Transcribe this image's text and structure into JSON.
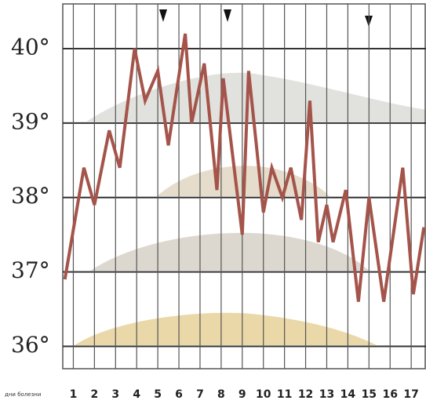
{
  "chart_data": {
    "type": "line",
    "x_label": "дни болезни",
    "x": [
      0.6,
      1.5,
      2.0,
      2.7,
      3.2,
      3.9,
      4.4,
      5.0,
      5.5,
      6.3,
      6.6,
      7.2,
      7.8,
      8.1,
      9.0,
      9.3,
      10.0,
      10.4,
      10.9,
      11.3,
      11.8,
      12.2,
      12.6,
      13.0,
      13.3,
      13.9,
      14.5,
      15.0,
      15.7,
      16.6,
      17.1,
      17.6
    ],
    "values": [
      36.9,
      38.4,
      37.9,
      38.9,
      38.4,
      40.0,
      39.3,
      39.7,
      38.7,
      40.2,
      39.0,
      39.8,
      38.1,
      39.6,
      37.5,
      39.7,
      37.8,
      38.4,
      38.0,
      38.4,
      37.7,
      39.3,
      37.4,
      37.9,
      37.4,
      38.1,
      36.6,
      38.0,
      36.6,
      38.4,
      36.7,
      37.6
    ],
    "color": "#a4544a",
    "xlim": [
      0.5,
      17.7
    ],
    "ylim": [
      35.7,
      40.6
    ],
    "xticks": [
      1,
      2,
      3,
      4,
      5,
      6,
      7,
      8,
      9,
      10,
      11,
      12,
      13,
      14,
      15,
      16,
      17
    ],
    "yticks": [
      {
        "value": 36,
        "label": "36°"
      },
      {
        "value": 37,
        "label": "37°"
      },
      {
        "value": 38,
        "label": "38°"
      },
      {
        "value": 39,
        "label": "39°"
      },
      {
        "value": 40,
        "label": "40°"
      }
    ],
    "grid": true
  }
}
